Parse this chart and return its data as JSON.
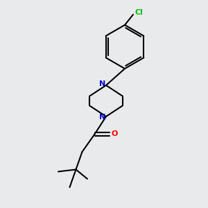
{
  "background_color": "#e8eaec",
  "bond_color": "#000000",
  "N_color": "#0000cc",
  "O_color": "#ff0000",
  "Cl_color": "#00bb00",
  "line_width": 1.5,
  "figsize": [
    3.0,
    3.0
  ],
  "dpi": 100,
  "xlim": [
    0,
    10
  ],
  "ylim": [
    0,
    10
  ]
}
